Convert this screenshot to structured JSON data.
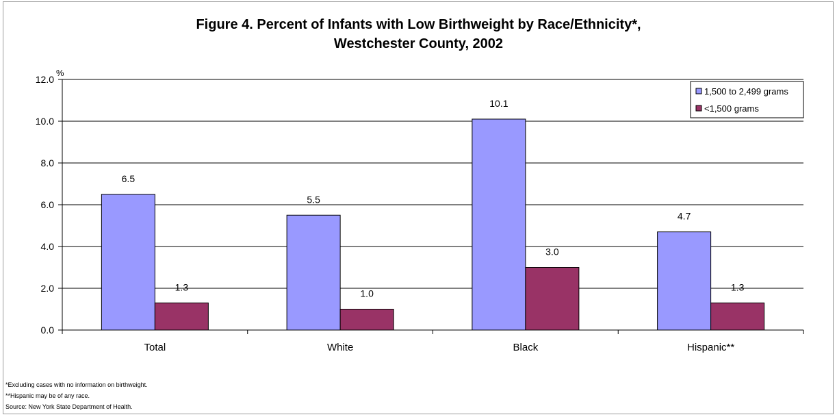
{
  "chart_data": {
    "type": "bar",
    "title_lines": [
      "Figure 4. Percent of Infants with Low Birthweight by Race/Ethnicity*,",
      "Westchester County, 2002"
    ],
    "ylabel": "%",
    "ylim": [
      0,
      12
    ],
    "yticks": [
      "0.0",
      "2.0",
      "4.0",
      "6.0",
      "8.0",
      "10.0",
      "12.0"
    ],
    "categories": [
      "Total",
      "White",
      "Black",
      "Hispanic**"
    ],
    "series": [
      {
        "name": "1,500 to 2,499 grams",
        "color": "#9999ff",
        "values": [
          6.5,
          5.5,
          10.1,
          4.7
        ],
        "labels": [
          "6.5",
          "5.5",
          "10.1",
          "4.7"
        ]
      },
      {
        "name": "<1,500 grams",
        "color": "#993366",
        "values": [
          1.3,
          1.0,
          3.0,
          1.3
        ],
        "labels": [
          "1.3",
          "1.0",
          "3.0",
          "1.3"
        ]
      }
    ],
    "grid": true,
    "legend_position": "top-right"
  },
  "footnotes": [
    "*Excluding cases with no information on birthweight.",
    "**Hispanic may be of any race.",
    "Source: New York State Department of Health."
  ]
}
